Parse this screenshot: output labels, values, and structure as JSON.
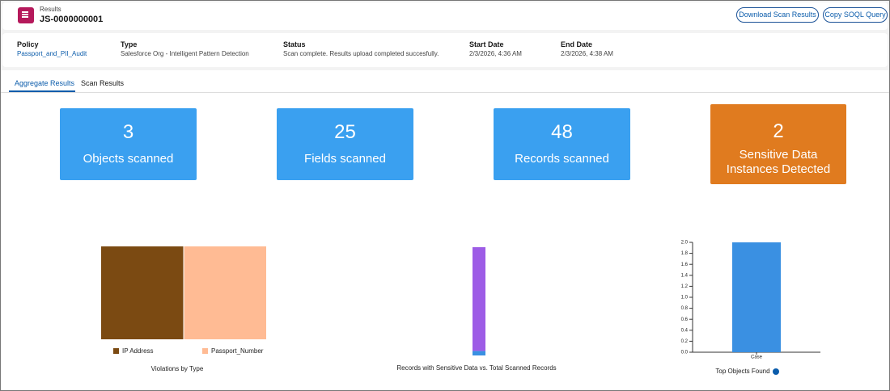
{
  "header": {
    "label": "Results",
    "title": "JS-0000000001",
    "buttons": [
      "Download Scan Results",
      "Copy SOQL Query"
    ]
  },
  "details": [
    {
      "label": "Policy",
      "value": "Passport_and_PII_Audit"
    },
    {
      "label": "Type",
      "value": "Salesforce Org - Intelligent Pattern Detection"
    },
    {
      "label": "Status",
      "value": "Scan complete. Results upload completed succesfully."
    },
    {
      "label": "Start Date",
      "value": "2/3/2026, 4:36 AM"
    },
    {
      "label": "End Date",
      "value": "2/3/2026, 4:38 AM"
    }
  ],
  "tabs": [
    "Aggregate Results",
    "Scan Results"
  ],
  "stats": [
    {
      "value": 3,
      "label": "Objects scanned",
      "color": "#3aa0f0"
    },
    {
      "value": 25,
      "label": "Fields scanned",
      "color": "#3aa0f0"
    },
    {
      "value": 48,
      "label": "Records scanned",
      "color": "#3aa0f0"
    },
    {
      "value": 2,
      "label": "Sensitive Data Instances Detected",
      "color": "#e07b1f"
    }
  ],
  "chart_data": [
    {
      "type": "treemap",
      "title": "Violations by Type",
      "categories": [
        "IP Address",
        "Passport_Number"
      ],
      "values": [
        1,
        1
      ],
      "colors": [
        "#7b4a12",
        "#ffbb94"
      ]
    },
    {
      "type": "stacked",
      "title": "Records with Sensitive Data vs. Total Scanned Records",
      "series": [
        {
          "color": "#3a90e2",
          "values": [
            2
          ]
        },
        {
          "color": "#9d5ce6",
          "values": [
            46
          ]
        }
      ]
    },
    {
      "type": "bar",
      "title": "Top Objects Found",
      "categories": [
        "Case"
      ],
      "values": [
        2
      ],
      "color": "#3a90e2",
      "ylim": [
        0,
        2
      ],
      "yticks": [
        {
          "value": 0,
          "label": "0.0"
        },
        {
          "value": 0.2,
          "label": "0.2"
        },
        {
          "value": 0.4,
          "label": "0.4"
        },
        {
          "value": 0.6,
          "label": "0.6"
        },
        {
          "value": 0.8,
          "label": "0.8"
        },
        {
          "value": 1,
          "label": "1.0"
        },
        {
          "value": 1.2,
          "label": "1.2"
        },
        {
          "value": 1.4,
          "label": "1.4"
        },
        {
          "value": 1.6,
          "label": "1.6"
        },
        {
          "value": 1.8,
          "label": "1.8"
        },
        {
          "value": 2,
          "label": "2.0"
        }
      ]
    }
  ]
}
